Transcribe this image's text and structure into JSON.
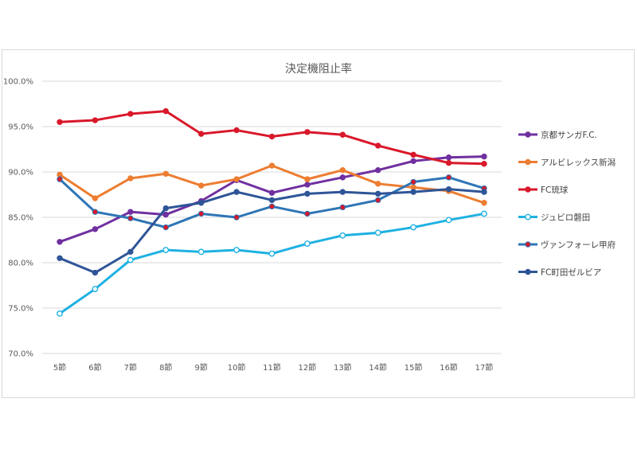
{
  "chart_data": {
    "type": "line",
    "title": "決定機阻止率",
    "xlabel": "",
    "ylabel": "",
    "categories": [
      "5節",
      "6節",
      "7節",
      "8節",
      "9節",
      "10節",
      "11節",
      "12節",
      "13節",
      "14節",
      "15節",
      "16節",
      "17節"
    ],
    "ylim": [
      70,
      100
    ],
    "yticks": [
      70,
      75,
      80,
      85,
      90,
      95,
      100
    ],
    "ytick_labels": [
      "70.0%",
      "75.0%",
      "80.0%",
      "85.0%",
      "90.0%",
      "95.0%",
      "100.0%"
    ],
    "grid": true,
    "legend_position": "right",
    "series": [
      {
        "name": "京都サンガF.C.",
        "color": "#7030a0",
        "marker": "filled",
        "values": [
          82.3,
          83.7,
          85.6,
          85.3,
          86.8,
          89.1,
          87.7,
          88.6,
          89.4,
          90.2,
          91.2,
          91.6,
          91.7
        ]
      },
      {
        "name": "アルビレックス新潟",
        "color": "#ed7d31",
        "marker": "filled",
        "values": [
          89.7,
          87.1,
          89.3,
          89.8,
          88.5,
          89.2,
          90.7,
          89.2,
          90.2,
          88.7,
          88.3,
          87.9,
          86.6
        ]
      },
      {
        "name": "FC琉球",
        "color": "#d9182a",
        "marker": "filled",
        "values": [
          95.5,
          95.7,
          96.4,
          96.7,
          94.2,
          94.6,
          93.9,
          94.4,
          94.1,
          92.9,
          91.9,
          91.0,
          90.9
        ]
      },
      {
        "name": "ジュビロ磐田",
        "color": "#1fb1e2",
        "marker": "hollow",
        "values": [
          74.4,
          77.1,
          80.3,
          81.4,
          81.2,
          81.4,
          81.0,
          82.1,
          83.0,
          83.3,
          83.9,
          84.7,
          85.4
        ]
      },
      {
        "name": "ヴァンフォーレ甲府",
        "color": "#2e75b6",
        "marker": "red-dot",
        "values": [
          89.2,
          85.6,
          84.9,
          83.9,
          85.4,
          85.0,
          86.2,
          85.4,
          86.1,
          86.9,
          88.9,
          89.4,
          88.2
        ]
      },
      {
        "name": "FC町田ゼルビア",
        "color": "#2f5597",
        "marker": "filled",
        "values": [
          80.5,
          78.9,
          81.2,
          86.0,
          86.6,
          87.8,
          86.9,
          87.6,
          87.8,
          87.6,
          87.8,
          88.1,
          87.8
        ]
      }
    ]
  }
}
